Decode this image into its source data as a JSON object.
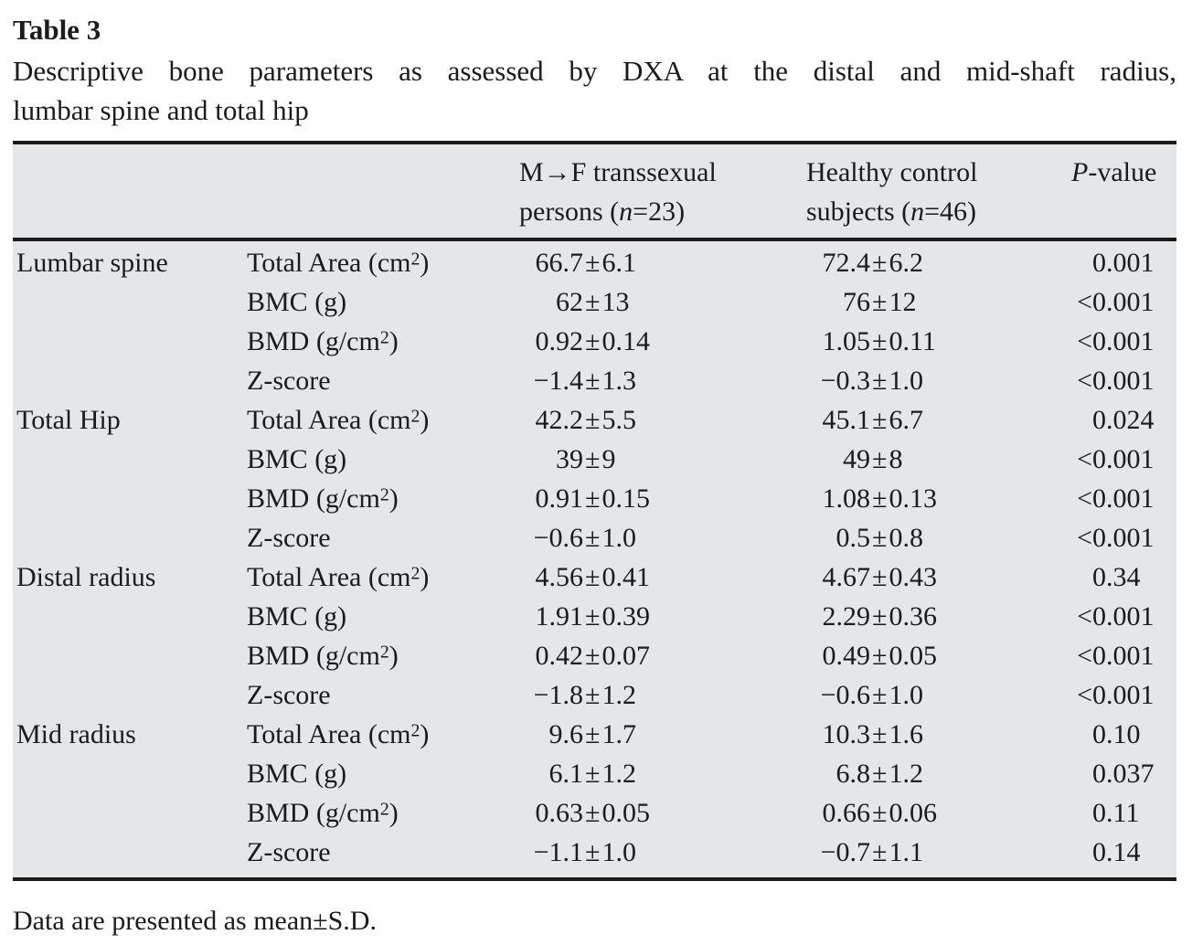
{
  "page": {
    "title": "Table 3",
    "caption_line1": "Descriptive bone parameters as assessed by DXA at the distal and mid-shaft radius,",
    "caption_line2": "lumbar spine and total hip",
    "footnote": "Data are presented as mean±S.D."
  },
  "table": {
    "header": {
      "site_col": "",
      "param_col": "",
      "mf": {
        "line1": "M→F transsexual",
        "line2_pre": "persons (",
        "line2_var": "n",
        "line2_post": "=23)"
      },
      "control": {
        "line1": "Healthy control",
        "line2_pre": "subjects (",
        "line2_var": "n",
        "line2_post": "=46)"
      },
      "p": {
        "var": "P",
        "rest": "-value"
      }
    },
    "groups": [
      {
        "site": "Lumbar spine",
        "rows": [
          {
            "param": "Total Area (cm²)",
            "mf": "66.7±6.1",
            "control": "72.4±6.2",
            "p": "0.001"
          },
          {
            "param": "BMC (g)",
            "mf": "62±13",
            "control": "76±12",
            "p": "<0.001"
          },
          {
            "param": "BMD (g/cm²)",
            "mf": "0.92±0.14",
            "control": "1.05±0.11",
            "p": "<0.001"
          },
          {
            "param": "Z-score",
            "mf": "−1.4±1.3",
            "control": "−0.3±1.0",
            "p": "<0.001"
          }
        ]
      },
      {
        "site": "Total Hip",
        "rows": [
          {
            "param": "Total Area (cm²)",
            "mf": "42.2±5.5",
            "control": "45.1±6.7",
            "p": "0.024"
          },
          {
            "param": "BMC (g)",
            "mf": "39±9",
            "control": "49±8",
            "p": "<0.001"
          },
          {
            "param": "BMD (g/cm²)",
            "mf": "0.91±0.15",
            "control": "1.08±0.13",
            "p": "<0.001"
          },
          {
            "param": "Z-score",
            "mf": "−0.6±1.0",
            "control": "0.5±0.8",
            "p": "<0.001"
          }
        ]
      },
      {
        "site": "Distal radius",
        "rows": [
          {
            "param": "Total Area (cm²)",
            "mf": "4.56±0.41",
            "control": "4.67±0.43",
            "p": "0.34"
          },
          {
            "param": "BMC (g)",
            "mf": "1.91±0.39",
            "control": "2.29±0.36",
            "p": "<0.001"
          },
          {
            "param": "BMD (g/cm²)",
            "mf": "0.42±0.07",
            "control": "0.49±0.05",
            "p": "<0.001"
          },
          {
            "param": "Z-score",
            "mf": "−1.8±1.2",
            "control": "−0.6±1.0",
            "p": "<0.001"
          }
        ]
      },
      {
        "site": "Mid radius",
        "rows": [
          {
            "param": "Total Area (cm²)",
            "mf": "9.6±1.7",
            "control": "10.3±1.6",
            "p": "0.10"
          },
          {
            "param": "BMC (g)",
            "mf": "6.1±1.2",
            "control": "6.8±1.2",
            "p": "0.037"
          },
          {
            "param": "BMD (g/cm²)",
            "mf": "0.63±0.05",
            "control": "0.66±0.06",
            "p": "0.11"
          },
          {
            "param": "Z-score",
            "mf": "−1.1±1.0",
            "control": "−0.7±1.1",
            "p": "0.14"
          }
        ]
      }
    ]
  },
  "colors": {
    "text": "#1b1b1b",
    "table_background": "#e5e6e7",
    "rule": "#1b1b1b"
  }
}
